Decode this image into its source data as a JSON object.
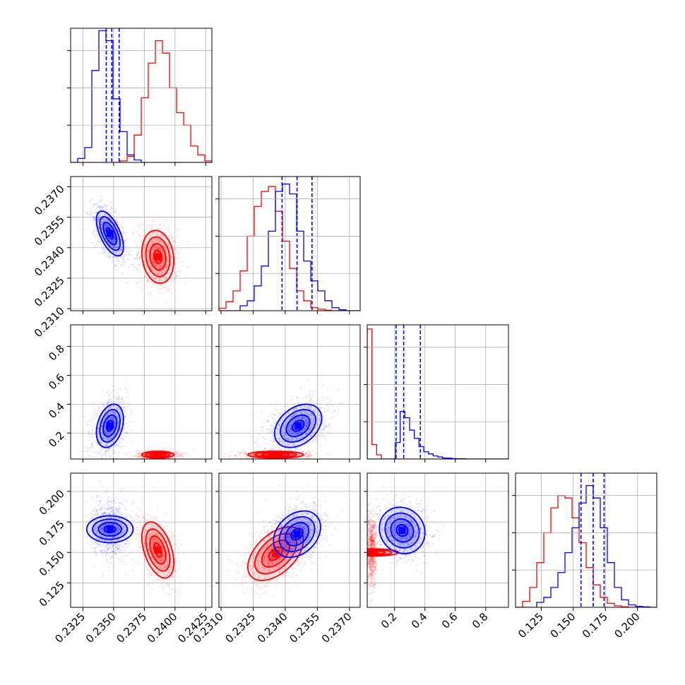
{
  "chart_data": {
    "type": "corner",
    "grid": true,
    "series": [
      {
        "name": "",
        "color": "#0000ff"
      },
      {
        "name": "",
        "color": "#ff0000"
      }
    ],
    "parameters": [
      {
        "index": 0,
        "range": [
          0.2315,
          0.243
        ],
        "ticks": [
          0.2325,
          0.235,
          0.2375,
          0.24,
          0.2425
        ],
        "tick_labels": [
          "0.2325",
          "0.2350",
          "0.2375",
          "0.2400",
          "0.2425"
        ]
      },
      {
        "index": 1,
        "range": [
          0.2309,
          0.2375
        ],
        "ticks": [
          0.231,
          0.2325,
          0.234,
          0.2355,
          0.237
        ],
        "tick_labels": [
          "0.2310",
          "0.2325",
          "0.2340",
          "0.2355",
          "0.2370"
        ]
      },
      {
        "index": 2,
        "range": [
          0.02,
          0.95
        ],
        "ticks": [
          0.2,
          0.4,
          0.6,
          0.8
        ],
        "tick_labels": [
          "0.2",
          "0.4",
          "0.6",
          "0.8"
        ]
      },
      {
        "index": 3,
        "range": [
          0.105,
          0.215
        ],
        "ticks": [
          0.125,
          0.15,
          0.175,
          0.2
        ],
        "tick_labels": [
          "0.125",
          "0.150",
          "0.175",
          "0.200"
        ]
      }
    ],
    "histograms": [
      {
        "param": 0,
        "bins": [
          0.2315,
          0.243,
          20
        ],
        "ymax": 0.27,
        "quantile_lines": [
          0.2344,
          0.23485,
          0.23545
        ],
        "blue": [
          0,
          0.008,
          0.03,
          0.185,
          0.265,
          0.245,
          0.128,
          0.062,
          0.015,
          0.005,
          0,
          0,
          0,
          0,
          0,
          0,
          0,
          0,
          0,
          0
        ],
        "red": [
          0,
          0,
          0,
          0,
          0,
          0,
          0,
          0.003,
          0.012,
          0.055,
          0.13,
          0.2,
          0.245,
          0.22,
          0.15,
          0.1,
          0.075,
          0.033,
          0.015,
          0.003
        ]
      },
      {
        "param": 1,
        "bins": [
          0.2309,
          0.2375,
          20
        ],
        "ymax": 0.27,
        "quantile_lines": [
          0.23385,
          0.23455,
          0.23525
        ],
        "blue": [
          0,
          0,
          0,
          0.01,
          0.02,
          0.05,
          0.09,
          0.16,
          0.24,
          0.255,
          0.235,
          0.16,
          0.1,
          0.06,
          0.04,
          0.02,
          0.006,
          0.002,
          0,
          0
        ],
        "red": [
          0.005,
          0.018,
          0.04,
          0.08,
          0.15,
          0.21,
          0.24,
          0.25,
          0.2,
          0.14,
          0.085,
          0.04,
          0.02,
          0.006,
          0.003,
          0.001,
          0,
          0,
          0,
          0
        ]
      },
      {
        "param": 2,
        "bins": [
          0.02,
          0.95,
          30
        ],
        "ymax": 0.65,
        "quantile_lines": [
          0.21,
          0.26,
          0.37
        ],
        "blue": [
          0,
          0,
          0,
          0,
          0,
          0,
          0.08,
          0.23,
          0.2,
          0.14,
          0.1,
          0.06,
          0.035,
          0.025,
          0.015,
          0.01,
          0.005,
          0.004,
          0.002,
          0.001,
          0.001,
          0,
          0,
          0,
          0,
          0,
          0,
          0,
          0,
          0
        ],
        "red": [
          0.63,
          0.07,
          0.02,
          0,
          0,
          0,
          0,
          0,
          0,
          0,
          0,
          0,
          0,
          0,
          0,
          0,
          0,
          0,
          0,
          0,
          0,
          0,
          0,
          0,
          0,
          0,
          0,
          0,
          0,
          0
        ]
      },
      {
        "param": 3,
        "bins": [
          0.105,
          0.215,
          20
        ],
        "ymax": 0.27,
        "quantile_lines": [
          0.156,
          0.1655,
          0.174
        ],
        "blue": [
          0,
          0,
          0,
          0.01,
          0.02,
          0.04,
          0.07,
          0.11,
          0.16,
          0.21,
          0.245,
          0.22,
          0.16,
          0.09,
          0.04,
          0.015,
          0.005,
          0.002,
          0.001,
          0
        ],
        "red": [
          0,
          0.012,
          0.04,
          0.09,
          0.15,
          0.2,
          0.225,
          0.22,
          0.18,
          0.13,
          0.08,
          0.045,
          0.02,
          0.008,
          0.003,
          0.001,
          0,
          0,
          0,
          0
        ]
      }
    ],
    "joint_distributions": [
      {
        "row": 1,
        "col": 0,
        "blue": {
          "mean": [
            0.2347,
            0.2347
          ],
          "sd": [
            0.00055,
            0.00055
          ],
          "rho": -0.6
        },
        "red": {
          "mean": [
            0.2386,
            0.23355
          ],
          "sd": [
            0.00065,
            0.00065
          ],
          "rho": -0.15
        }
      },
      {
        "row": 2,
        "col": 0,
        "blue": {
          "mean": [
            0.2347,
            0.25
          ],
          "sd": [
            0.00055,
            0.075
          ],
          "rho": 0.3
        },
        "red": {
          "mean": [
            0.2386,
            0.05
          ],
          "sd": [
            0.00065,
            0.012
          ],
          "rho": 0.0
        }
      },
      {
        "row": 2,
        "col": 1,
        "blue": {
          "mean": [
            0.2346,
            0.25
          ],
          "sd": [
            0.00055,
            0.075
          ],
          "rho": 0.35
        },
        "red": {
          "mean": [
            0.23355,
            0.05
          ],
          "sd": [
            0.00065,
            0.012
          ],
          "rho": 0.0
        }
      },
      {
        "row": 3,
        "col": 0,
        "blue": {
          "mean": [
            0.2347,
            0.169
          ],
          "sd": [
            0.00055,
            0.0095
          ],
          "rho": 0.0
        },
        "red": {
          "mean": [
            0.2386,
            0.152
          ],
          "sd": [
            0.00065,
            0.0115
          ],
          "rho": -0.45
        }
      },
      {
        "row": 3,
        "col": 1,
        "blue": {
          "mean": [
            0.23455,
            0.165
          ],
          "sd": [
            0.00055,
            0.0095
          ],
          "rho": 0.3
        },
        "red": {
          "mean": [
            0.23355,
            0.149
          ],
          "sd": [
            0.00065,
            0.011
          ],
          "rho": 0.5
        }
      },
      {
        "row": 3,
        "col": 2,
        "blue": {
          "mean": [
            0.25,
            0.168
          ],
          "sd": [
            0.075,
            0.0095
          ],
          "rho": -0.1
        },
        "red": {
          "mean": [
            0.05,
            0.15
          ],
          "sd": [
            0.012,
            0.011
          ],
          "rho": 0.0
        }
      }
    ],
    "contour_levels_sigma": [
      0.5,
      1.0,
      1.5,
      2.0
    ]
  }
}
